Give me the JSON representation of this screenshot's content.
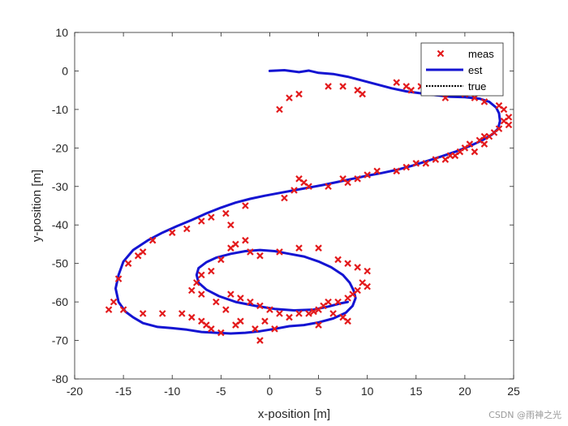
{
  "chart_data": {
    "type": "scatter",
    "xlabel": "x-position [m]",
    "ylabel": "y-position [m]",
    "xlim": [
      -20,
      25
    ],
    "ylim": [
      -80,
      10
    ],
    "xticks": [
      -20,
      -15,
      -10,
      -5,
      0,
      5,
      10,
      15,
      20,
      25
    ],
    "yticks": [
      10,
      0,
      -10,
      -20,
      -30,
      -40,
      -50,
      -60,
      -70,
      -80
    ],
    "legend_position": "top-right",
    "grid": false,
    "series": [
      {
        "name": "meas",
        "kind": "markers",
        "marker": "x",
        "color": "#e31a1c",
        "points": [
          [
            1,
            -10
          ],
          [
            2,
            -7
          ],
          [
            3,
            -6
          ],
          [
            6,
            -4
          ],
          [
            7.5,
            -4
          ],
          [
            9,
            -5
          ],
          [
            9.5,
            -6
          ],
          [
            13,
            -3
          ],
          [
            14,
            -4
          ],
          [
            14.5,
            -5
          ],
          [
            15.5,
            -4
          ],
          [
            16,
            -5
          ],
          [
            18,
            -7
          ],
          [
            20,
            -6
          ],
          [
            21,
            -7
          ],
          [
            22,
            -8
          ],
          [
            23.5,
            -9
          ],
          [
            24,
            -10
          ],
          [
            24.5,
            -12
          ],
          [
            24,
            -13
          ],
          [
            24.5,
            -14
          ],
          [
            23.5,
            -15
          ],
          [
            23,
            -16
          ],
          [
            22.5,
            -17
          ],
          [
            22,
            -17
          ],
          [
            21.5,
            -18
          ],
          [
            22,
            -19
          ],
          [
            20.5,
            -19
          ],
          [
            20,
            -20
          ],
          [
            19.5,
            -21
          ],
          [
            21,
            -21
          ],
          [
            19,
            -22
          ],
          [
            18.5,
            -22
          ],
          [
            18,
            -23
          ],
          [
            17,
            -23
          ],
          [
            16,
            -24
          ],
          [
            15,
            -24
          ],
          [
            14,
            -25
          ],
          [
            13,
            -26
          ],
          [
            11,
            -26
          ],
          [
            10,
            -27
          ],
          [
            9,
            -28
          ],
          [
            8,
            -29
          ],
          [
            7.5,
            -28
          ],
          [
            6,
            -30
          ],
          [
            4,
            -30
          ],
          [
            3.5,
            -29
          ],
          [
            3,
            -28
          ],
          [
            2.5,
            -31
          ],
          [
            1.5,
            -33
          ],
          [
            -2.5,
            -35
          ],
          [
            -4,
            -40
          ],
          [
            -4.5,
            -37
          ],
          [
            -6,
            -38
          ],
          [
            -7,
            -39
          ],
          [
            -8.5,
            -41
          ],
          [
            -10,
            -42
          ],
          [
            -12,
            -44
          ],
          [
            -13,
            -47
          ],
          [
            -13.5,
            -48
          ],
          [
            -14.5,
            -50
          ],
          [
            -15.5,
            -54
          ],
          [
            -16,
            -60
          ],
          [
            -16.5,
            -62
          ],
          [
            -15,
            -62
          ],
          [
            -13,
            -63
          ],
          [
            -11,
            -63
          ],
          [
            -9,
            -63
          ],
          [
            -8,
            -64
          ],
          [
            -7,
            -65
          ],
          [
            -6.5,
            -66
          ],
          [
            -6,
            -67
          ],
          [
            -5,
            -68
          ],
          [
            -3.5,
            -66
          ],
          [
            -1.5,
            -67
          ],
          [
            0.5,
            -67
          ],
          [
            -1,
            -70
          ],
          [
            -3,
            -65
          ],
          [
            -4.5,
            -62
          ],
          [
            -5.5,
            -60
          ],
          [
            -7,
            -58
          ],
          [
            -8,
            -57
          ],
          [
            -7.5,
            -55
          ],
          [
            -7,
            -53
          ],
          [
            -6,
            -52
          ],
          [
            -5,
            -49
          ],
          [
            -4,
            -46
          ],
          [
            -3.5,
            -45
          ],
          [
            -2.5,
            -44
          ],
          [
            -2,
            -47
          ],
          [
            -1,
            -48
          ],
          [
            1,
            -47
          ],
          [
            3,
            -46
          ],
          [
            5,
            -46
          ],
          [
            7,
            -49
          ],
          [
            8,
            -50
          ],
          [
            9,
            -51
          ],
          [
            10,
            -52
          ],
          [
            9.5,
            -55
          ],
          [
            10,
            -56
          ],
          [
            9,
            -57
          ],
          [
            8.5,
            -58
          ],
          [
            8,
            -59
          ],
          [
            7,
            -60
          ],
          [
            6,
            -60
          ],
          [
            5.5,
            -61
          ],
          [
            5,
            -62
          ],
          [
            4.5,
            -62.5
          ],
          [
            4,
            -63
          ],
          [
            3,
            -63
          ],
          [
            2,
            -64
          ],
          [
            1,
            -63
          ],
          [
            0,
            -62
          ],
          [
            -1,
            -61
          ],
          [
            -2,
            -60
          ],
          [
            -3,
            -59
          ],
          [
            -4,
            -58
          ],
          [
            6.5,
            -63
          ],
          [
            7.5,
            -64
          ],
          [
            8,
            -65
          ],
          [
            5,
            -66
          ],
          [
            -0.5,
            -65
          ]
        ]
      },
      {
        "name": "est",
        "kind": "line",
        "color": "#1414d2",
        "points": [
          [
            0,
            0
          ],
          [
            1.5,
            0.2
          ],
          [
            3,
            -0.3
          ],
          [
            4,
            0.1
          ],
          [
            5,
            -0.5
          ],
          [
            6.5,
            -0.8
          ],
          [
            8,
            -1.5
          ],
          [
            9.5,
            -2.5
          ],
          [
            11,
            -3.5
          ],
          [
            12.5,
            -4.5
          ],
          [
            14,
            -5.3
          ],
          [
            15.5,
            -5.8
          ],
          [
            17,
            -6.3
          ],
          [
            18.5,
            -6.7
          ],
          [
            20,
            -6.8
          ],
          [
            21.5,
            -7.2
          ],
          [
            22.5,
            -8
          ],
          [
            23.2,
            -9.5
          ],
          [
            23.5,
            -11
          ],
          [
            23.6,
            -13
          ],
          [
            23.4,
            -15
          ],
          [
            22.8,
            -16.5
          ],
          [
            21.8,
            -18
          ],
          [
            20.5,
            -19.5
          ],
          [
            19,
            -21
          ],
          [
            17.5,
            -22.3
          ],
          [
            16,
            -23.5
          ],
          [
            14.5,
            -24.7
          ],
          [
            13,
            -25.7
          ],
          [
            11.5,
            -26.5
          ],
          [
            10,
            -27.2
          ],
          [
            8.5,
            -28
          ],
          [
            7,
            -28.8
          ],
          [
            5.5,
            -29.6
          ],
          [
            4,
            -30.3
          ],
          [
            2.5,
            -31
          ],
          [
            1,
            -31.7
          ],
          [
            -0.5,
            -32.4
          ],
          [
            -2,
            -33.2
          ],
          [
            -3.5,
            -34.2
          ],
          [
            -5,
            -35.5
          ],
          [
            -6.5,
            -37
          ],
          [
            -8,
            -38.7
          ],
          [
            -9.5,
            -40.3
          ],
          [
            -11,
            -42
          ],
          [
            -12.5,
            -44
          ],
          [
            -14,
            -46.5
          ],
          [
            -15,
            -49.5
          ],
          [
            -15.5,
            -53
          ],
          [
            -15.8,
            -56.5
          ],
          [
            -15.5,
            -60
          ],
          [
            -14.8,
            -62.5
          ],
          [
            -14,
            -64
          ],
          [
            -13,
            -65.5
          ],
          [
            -11.5,
            -66.5
          ],
          [
            -10,
            -66.8
          ],
          [
            -8.5,
            -67.2
          ],
          [
            -7,
            -67.8
          ],
          [
            -5.5,
            -68
          ],
          [
            -4,
            -68.2
          ],
          [
            -2.5,
            -68
          ],
          [
            -1,
            -67.6
          ],
          [
            0.5,
            -67
          ],
          [
            2,
            -66.3
          ],
          [
            3.5,
            -66
          ],
          [
            5,
            -65.3
          ],
          [
            6.5,
            -64.3
          ],
          [
            7.8,
            -62.8
          ],
          [
            8.5,
            -61
          ],
          [
            8.8,
            -59
          ],
          [
            8.6,
            -57
          ],
          [
            8.2,
            -55
          ],
          [
            7.5,
            -53
          ],
          [
            6.3,
            -51
          ],
          [
            5,
            -49.5
          ],
          [
            3.5,
            -48.2
          ],
          [
            2,
            -47.5
          ],
          [
            0.5,
            -46.8
          ],
          [
            -1,
            -46.5
          ],
          [
            -2.5,
            -46.8
          ],
          [
            -4,
            -47.5
          ],
          [
            -5.5,
            -48.5
          ],
          [
            -6.5,
            -49.7
          ],
          [
            -7.3,
            -51.2
          ],
          [
            -7.5,
            -53
          ],
          [
            -7.3,
            -55
          ],
          [
            -6.5,
            -56.8
          ],
          [
            -5.2,
            -58.5
          ],
          [
            -3.5,
            -60
          ],
          [
            -1.5,
            -61
          ],
          [
            0.5,
            -61.8
          ],
          [
            2.5,
            -62.2
          ],
          [
            4.5,
            -62
          ],
          [
            6,
            -61.2
          ],
          [
            7.2,
            -60.4
          ],
          [
            8,
            -60
          ]
        ]
      },
      {
        "name": "true",
        "kind": "line",
        "dash": "dotted",
        "color": "#000000",
        "points": []
      }
    ]
  }
}
